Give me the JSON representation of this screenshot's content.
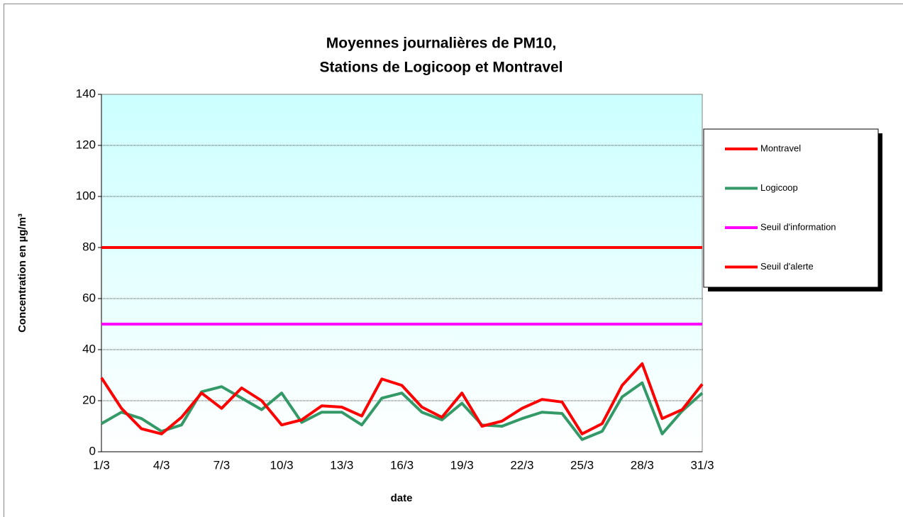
{
  "chart_data": {
    "type": "line",
    "title": "Moyennes journalières de PM10,",
    "subtitle": "Stations de Logicoop et Montravel",
    "x_label": "date",
    "y_label": "Concentration en µg/m³",
    "categories": [
      "1/3",
      null,
      null,
      "4/3",
      null,
      null,
      "7/3",
      null,
      null,
      "10/3",
      null,
      null,
      "13/3",
      null,
      null,
      "16/3",
      null,
      null,
      "19/3",
      null,
      null,
      "22/3",
      null,
      null,
      "25/3",
      null,
      null,
      "28/3",
      null,
      null,
      "31/3"
    ],
    "series": [
      {
        "name": "Montravel",
        "color": "#ff0000",
        "values": [
          29,
          17,
          9,
          7,
          13.5,
          23,
          17,
          25,
          20,
          10.5,
          12.5,
          18,
          17.5,
          14,
          28.5,
          26,
          17.5,
          13.5,
          23,
          10,
          12,
          17,
          20.5,
          19.5,
          7,
          11,
          26,
          34.5,
          13,
          16.5,
          26.5
        ]
      },
      {
        "name": "Logicoop",
        "color": "#339966",
        "values": [
          11,
          15.5,
          13,
          8,
          10.5,
          23.5,
          25.5,
          21,
          16.5,
          23,
          11.5,
          15.5,
          15.5,
          10.5,
          21,
          23,
          15.5,
          12.5,
          19,
          10.5,
          10,
          13,
          15.5,
          15,
          4.8,
          8,
          21.5,
          27,
          7,
          16,
          23
        ]
      },
      {
        "name": "Seuil d'information",
        "color": "#ff00ff",
        "values": [
          50,
          50,
          50,
          50,
          50,
          50,
          50,
          50,
          50,
          50,
          50,
          50,
          50,
          50,
          50,
          50,
          50,
          50,
          50,
          50,
          50,
          50,
          50,
          50,
          50,
          50,
          50,
          50,
          50,
          50,
          50
        ]
      },
      {
        "name": "Seuil d'alerte",
        "color": "#ff0000",
        "values": [
          80,
          80,
          80,
          80,
          80,
          80,
          80,
          80,
          80,
          80,
          80,
          80,
          80,
          80,
          80,
          80,
          80,
          80,
          80,
          80,
          80,
          80,
          80,
          80,
          80,
          80,
          80,
          80,
          80,
          80,
          80
        ]
      }
    ],
    "ylim": [
      0,
      140
    ],
    "yticks": [
      0,
      20,
      40,
      60,
      80,
      100,
      120,
      140
    ],
    "grid": true,
    "legend": "right"
  }
}
